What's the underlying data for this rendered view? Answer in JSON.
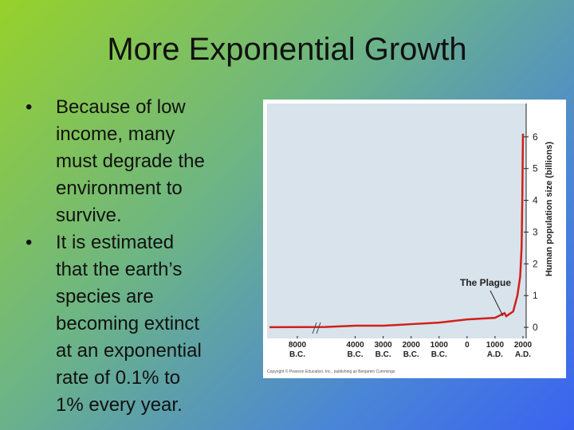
{
  "slide": {
    "title": "More Exponential Growth",
    "bullets": [
      [
        "Because of low",
        "income, many",
        "must degrade the",
        "environment to",
        "survive."
      ],
      [
        "It is estimated",
        "that the earth’s",
        "species are",
        "becoming extinct",
        "at an exponential",
        "rate of 0.1% to",
        "1% every year."
      ]
    ]
  },
  "chart_data": {
    "type": "line",
    "y_label": "Human population size (billions)",
    "annotation": "The Plague",
    "credit": "Copyright © Pearson Education, Inc., publishing as Benjamin Cummings",
    "x": [
      -9000,
      -7000,
      -4000,
      -3000,
      -2000,
      -1000,
      0,
      1000,
      1340,
      1400,
      1650,
      1800,
      1900,
      1950,
      1975,
      2000
    ],
    "series": [
      {
        "name": "Human population",
        "color": "#d0201a",
        "values": [
          0.005,
          0.01,
          0.05,
          0.05,
          0.1,
          0.15,
          0.25,
          0.3,
          0.45,
          0.35,
          0.5,
          1,
          1.6,
          2.5,
          4,
          6.1
        ]
      }
    ],
    "xlim": [
      -9000,
      2000
    ],
    "xbreak": [
      -7000,
      -4500
    ],
    "xticks": [
      {
        "value": -8000,
        "label": "8000\nB.C."
      },
      {
        "value": -4000,
        "label": "4000\nB.C."
      },
      {
        "value": -3000,
        "label": "3000\nB.C."
      },
      {
        "value": -2000,
        "label": "2000\nB.C."
      },
      {
        "value": -1000,
        "label": "1000\nB.C."
      },
      0,
      {
        "value": 1000,
        "label": "1000\nA.D."
      },
      {
        "value": 2000,
        "label": "2000\nA.D."
      }
    ],
    "ylim": [
      -0.35,
      7.05
    ],
    "yticks": [
      0,
      1,
      2,
      3,
      4,
      5,
      6
    ],
    "grid": false
  }
}
